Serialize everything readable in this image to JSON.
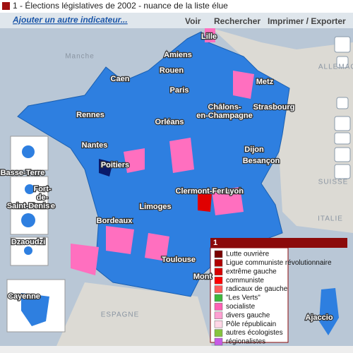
{
  "header": {
    "title": "1 - Élections législatives de 2002 - nuance de la liste élue",
    "link": "Ajouter un autre indicateur...",
    "menu": [
      "Voir",
      "Rechercher",
      "Imprimer / Exporter"
    ]
  },
  "map": {
    "cities": [
      "Lille",
      "Amiens",
      "Rouen",
      "Caen",
      "Paris",
      "Metz",
      "Châlons-\nen-Champagne",
      "Strasbourg",
      "Rennes",
      "Orléans",
      "Nantes",
      "Poitiers",
      "Dijon",
      "Besançon",
      "Clermont-Ferrand",
      "Lyon",
      "Limoges",
      "Bordeaux",
      "Toulouse",
      "Mont",
      "Ajaccio"
    ],
    "regions": [
      "Manche",
      "ALLEMAG",
      "SUISSE",
      "ITALIE",
      "ESPAGNE"
    ],
    "overseas": [
      "Basse-Terre",
      "Fort-\nde-\nFrance",
      "Saint-Denis",
      "Dzaoudzi",
      "Cayenne"
    ]
  },
  "legend": {
    "title": "1",
    "items": [
      {
        "label": "Lutte ouvrière",
        "color": "#7a0000"
      },
      {
        "label": "Ligue communiste révolutionnaire",
        "color": "#b00000"
      },
      {
        "label": "extrême gauche",
        "color": "#d80000"
      },
      {
        "label": "communiste",
        "color": "#ff0000"
      },
      {
        "label": "radicaux de gauche",
        "color": "#ff5a5a"
      },
      {
        "label": "\"Les Verts\"",
        "color": "#3cb83c"
      },
      {
        "label": "socialiste",
        "color": "#ff5fb4"
      },
      {
        "label": "divers gauche",
        "color": "#ff9fd2"
      },
      {
        "label": "Pôle républicain",
        "color": "#ffd6e6"
      },
      {
        "label": "autres écologistes",
        "color": "#86c43e"
      },
      {
        "label": "régionalistes",
        "color": "#c85ae6"
      }
    ]
  }
}
